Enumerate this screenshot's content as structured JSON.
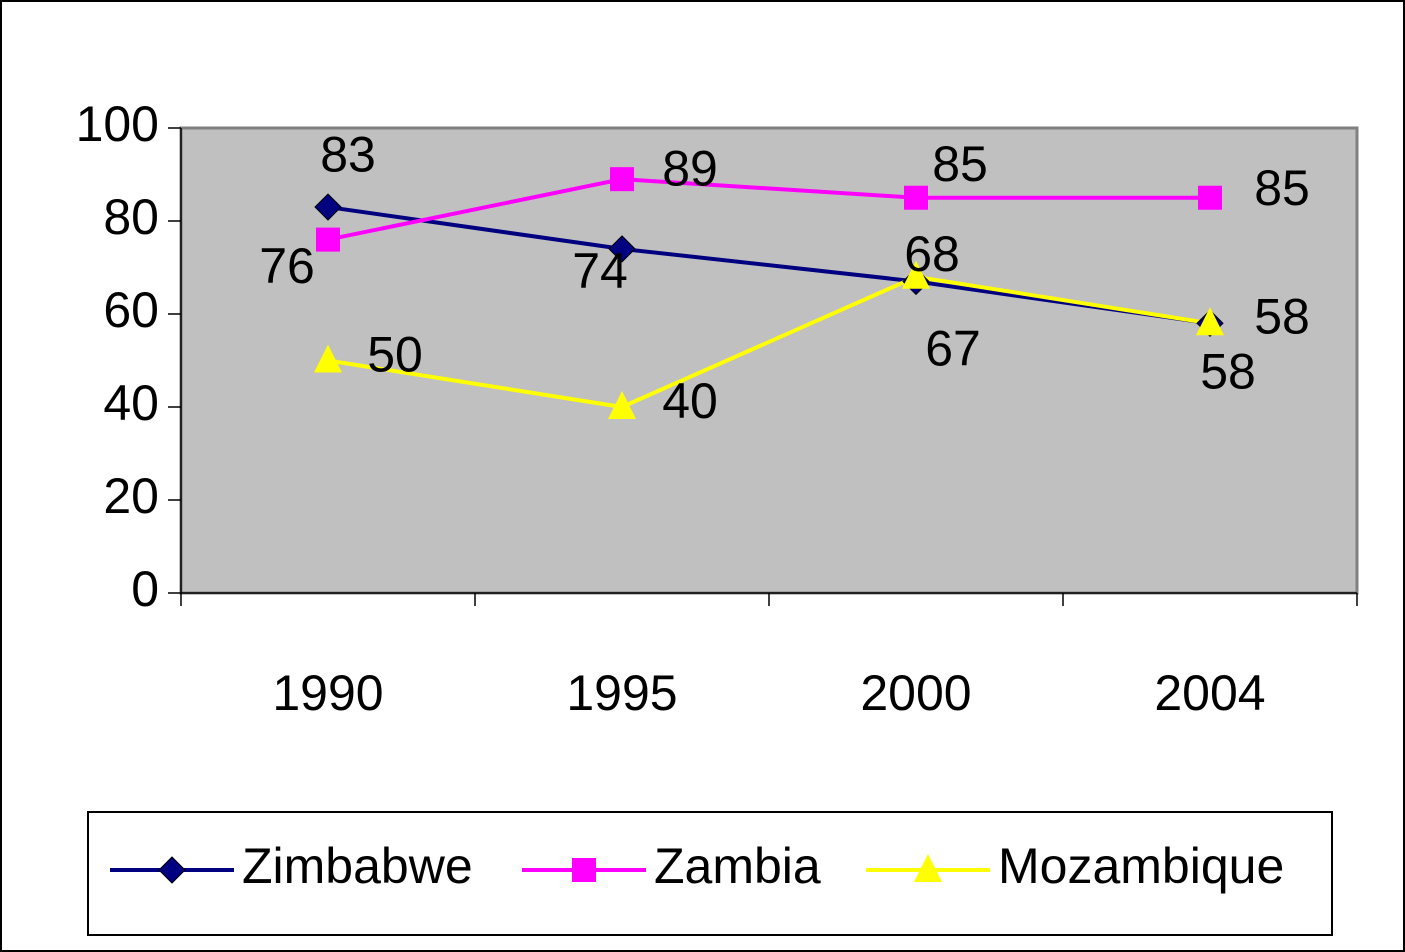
{
  "chart_data": {
    "type": "line",
    "categories": [
      "1990",
      "1995",
      "2000",
      "2004"
    ],
    "series": [
      {
        "name": "Zimbabwe",
        "color": "#000080",
        "marker": "diamond",
        "values": [
          83,
          74,
          67,
          58
        ]
      },
      {
        "name": "Zambia",
        "color": "#ff00ff",
        "marker": "square",
        "values": [
          76,
          89,
          85,
          85
        ]
      },
      {
        "name": "Mozambique",
        "color": "#ffff00",
        "marker": "triangle",
        "values": [
          50,
          40,
          68,
          58
        ]
      }
    ],
    "ylim": [
      0,
      100
    ],
    "yticks": [
      0,
      20,
      40,
      60,
      80,
      100
    ],
    "legend": "bottom"
  }
}
